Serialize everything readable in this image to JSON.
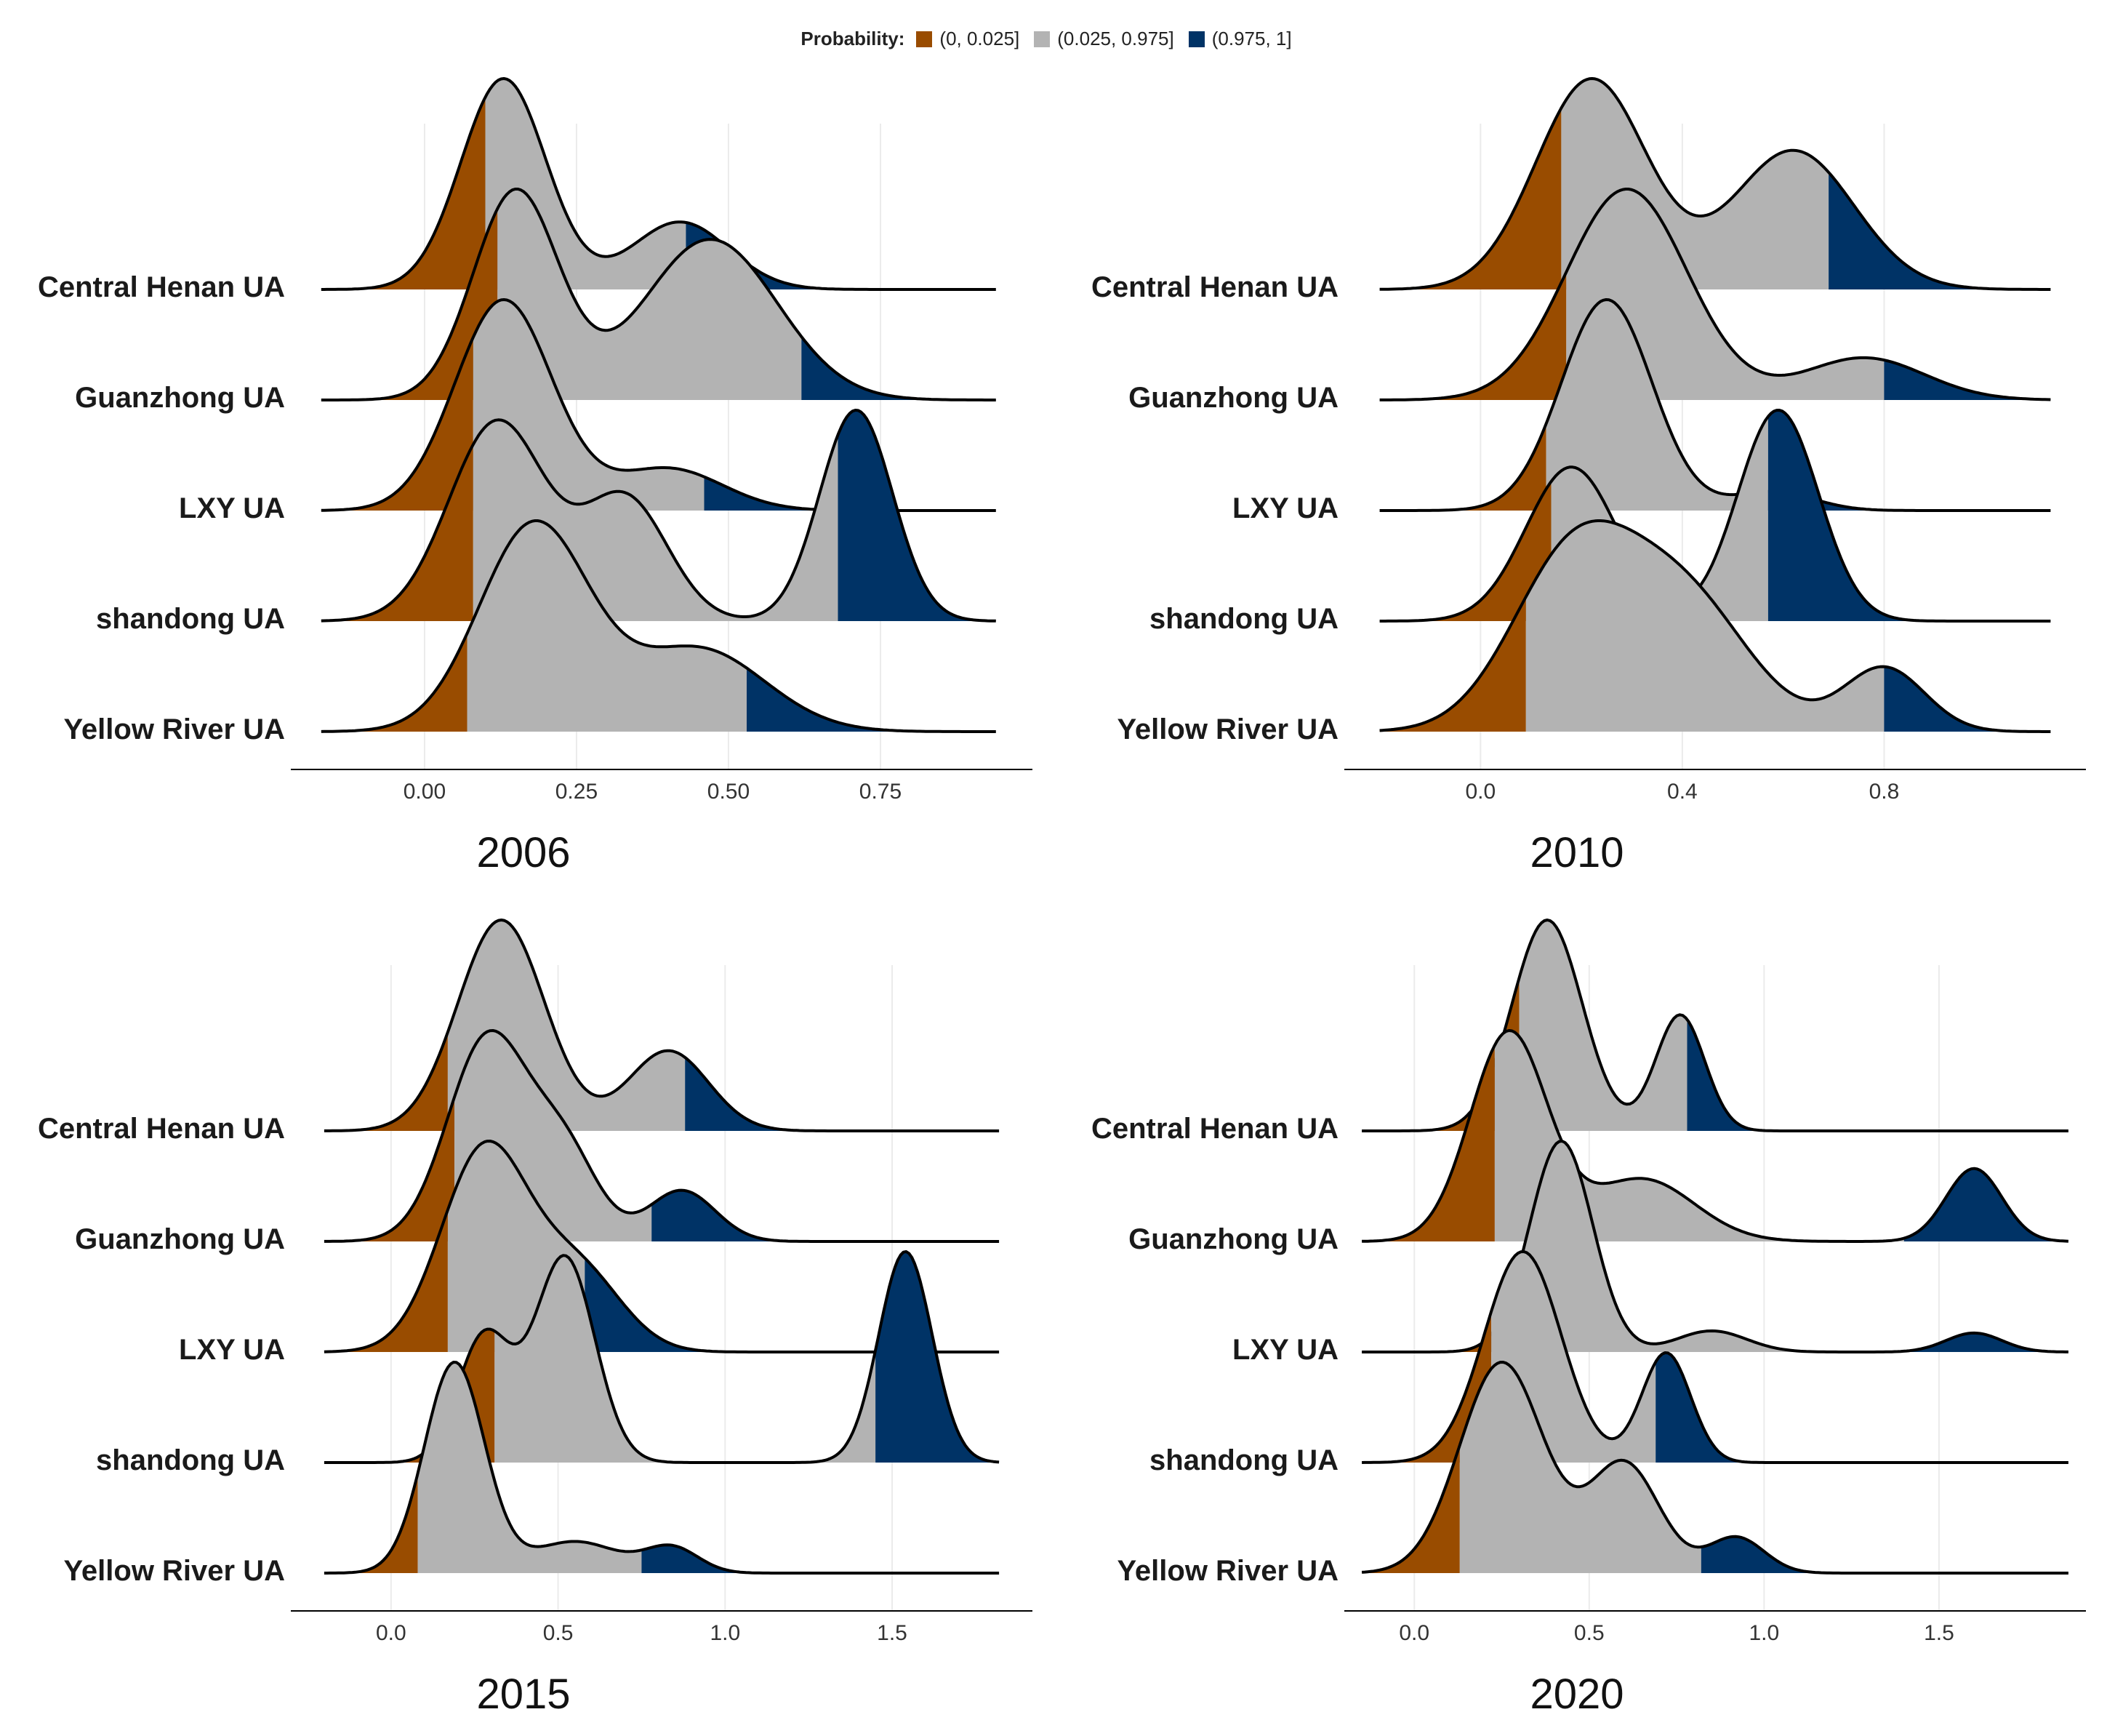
{
  "legend": {
    "title": "Probability:",
    "items": [
      {
        "label": "(0, 0.025]",
        "color": "#994C00"
      },
      {
        "label": "(0.025, 0.975]",
        "color": "#B3B3B3"
      },
      {
        "label": "(0.975, 1]",
        "color": "#003366"
      }
    ]
  },
  "chart_data": [
    {
      "type": "ridgeline",
      "title": "2006",
      "categories": [
        "Central Henan UA",
        "Guanzhong UA",
        "LXY UA",
        "shandong UA",
        "Yellow River UA"
      ],
      "xlim": [
        -0.22,
        1.0
      ],
      "x_ticks": [
        0.0,
        0.25,
        0.5,
        0.75
      ],
      "x_tick_labels": [
        "0.00",
        "0.25",
        "0.50",
        "0.75"
      ],
      "x_range": [
        -0.17,
        0.94
      ],
      "series": [
        {
          "name": "Central Henan UA",
          "q_low": 0.1,
          "q_high": 0.43,
          "components": [
            {
              "mu": 0.13,
              "sd": 0.07,
              "w": 1.0
            },
            {
              "mu": 0.42,
              "sd": 0.08,
              "w": 0.32
            }
          ]
        },
        {
          "name": "Guanzhong UA",
          "q_low": 0.12,
          "q_high": 0.62,
          "components": [
            {
              "mu": 0.15,
              "sd": 0.07,
              "w": 1.0
            },
            {
              "mu": 0.47,
              "sd": 0.11,
              "w": 0.77
            }
          ]
        },
        {
          "name": "LXY UA",
          "q_low": 0.08,
          "q_high": 0.46,
          "components": [
            {
              "mu": 0.13,
              "sd": 0.08,
              "w": 1.0
            },
            {
              "mu": 0.4,
              "sd": 0.09,
              "w": 0.2
            }
          ]
        },
        {
          "name": "shandong UA",
          "q_low": 0.08,
          "q_high": 0.68,
          "components": [
            {
              "mu": 0.12,
              "sd": 0.08,
              "w": 0.9
            },
            {
              "mu": 0.33,
              "sd": 0.07,
              "w": 0.55
            },
            {
              "mu": 0.71,
              "sd": 0.06,
              "w": 0.95
            }
          ]
        },
        {
          "name": "Yellow River UA",
          "q_low": 0.07,
          "q_high": 0.53,
          "components": [
            {
              "mu": 0.18,
              "sd": 0.09,
              "w": 1.0
            },
            {
              "mu": 0.45,
              "sd": 0.11,
              "w": 0.4
            }
          ]
        }
      ]
    },
    {
      "type": "ridgeline",
      "title": "2010",
      "categories": [
        "Central Henan UA",
        "Guanzhong UA",
        "LXY UA",
        "shandong UA",
        "Yellow River UA"
      ],
      "xlim": [
        -0.27,
        1.2
      ],
      "x_ticks": [
        0.0,
        0.4,
        0.8
      ],
      "x_tick_labels": [
        "0.0",
        "0.4",
        "0.8"
      ],
      "x_range": [
        -0.2,
        1.13
      ],
      "series": [
        {
          "name": "Central Henan UA",
          "q_low": 0.16,
          "q_high": 0.69,
          "components": [
            {
              "mu": 0.22,
              "sd": 0.11,
              "w": 1.0
            },
            {
              "mu": 0.62,
              "sd": 0.12,
              "w": 0.66
            }
          ]
        },
        {
          "name": "Guanzhong UA",
          "q_low": 0.17,
          "q_high": 0.8,
          "components": [
            {
              "mu": 0.29,
              "sd": 0.12,
              "w": 1.0
            },
            {
              "mu": 0.76,
              "sd": 0.12,
              "w": 0.2
            }
          ]
        },
        {
          "name": "LXY UA",
          "q_low": 0.13,
          "q_high": 0.56,
          "components": [
            {
              "mu": 0.25,
              "sd": 0.09,
              "w": 1.0
            },
            {
              "mu": 0.58,
              "sd": 0.08,
              "w": 0.09
            }
          ]
        },
        {
          "name": "shandong UA",
          "q_low": 0.14,
          "q_high": 0.57,
          "components": [
            {
              "mu": 0.18,
              "sd": 0.09,
              "w": 0.73
            },
            {
              "mu": 0.59,
              "sd": 0.08,
              "w": 1.0
            }
          ]
        },
        {
          "name": "Yellow River UA",
          "q_low": 0.09,
          "q_high": 0.8,
          "components": [
            {
              "mu": 0.18,
              "sd": 0.12,
              "w": 0.95
            },
            {
              "mu": 0.4,
              "sd": 0.13,
              "w": 0.75
            },
            {
              "mu": 0.8,
              "sd": 0.08,
              "w": 0.36
            }
          ]
        }
      ]
    },
    {
      "type": "ridgeline",
      "title": "2015",
      "categories": [
        "Central Henan UA",
        "Guanzhong UA",
        "LXY UA",
        "shandong UA",
        "Yellow River UA"
      ],
      "xlim": [
        -0.3,
        1.92
      ],
      "x_ticks": [
        0.0,
        0.5,
        1.0,
        1.5
      ],
      "x_tick_labels": [
        "0.0",
        "0.5",
        "1.0",
        "1.5"
      ],
      "x_range": [
        -0.2,
        1.82
      ],
      "series": [
        {
          "name": "Central Henan UA",
          "q_low": 0.17,
          "q_high": 0.88,
          "components": [
            {
              "mu": 0.33,
              "sd": 0.13,
              "w": 1.0
            },
            {
              "mu": 0.83,
              "sd": 0.12,
              "w": 0.38
            }
          ]
        },
        {
          "name": "Guanzhong UA",
          "q_low": 0.19,
          "q_high": 0.78,
          "components": [
            {
              "mu": 0.29,
              "sd": 0.12,
              "w": 1.0
            },
            {
              "mu": 0.52,
              "sd": 0.1,
              "w": 0.42
            },
            {
              "mu": 0.87,
              "sd": 0.1,
              "w": 0.25
            }
          ]
        },
        {
          "name": "LXY UA",
          "q_low": 0.17,
          "q_high": 0.58,
          "components": [
            {
              "mu": 0.28,
              "sd": 0.13,
              "w": 1.0
            },
            {
              "mu": 0.56,
              "sd": 0.13,
              "w": 0.4
            }
          ]
        },
        {
          "name": "shandong UA",
          "q_low": 0.31,
          "q_high": 1.45,
          "components": [
            {
              "mu": 0.28,
              "sd": 0.08,
              "w": 0.48
            },
            {
              "mu": 0.52,
              "sd": 0.09,
              "w": 0.78
            },
            {
              "mu": 1.54,
              "sd": 0.08,
              "w": 0.8
            }
          ]
        },
        {
          "name": "Yellow River UA",
          "q_low": 0.08,
          "q_high": 0.75,
          "components": [
            {
              "mu": 0.19,
              "sd": 0.09,
              "w": 1.0
            },
            {
              "mu": 0.55,
              "sd": 0.13,
              "w": 0.15
            },
            {
              "mu": 0.84,
              "sd": 0.08,
              "w": 0.12
            }
          ]
        }
      ]
    },
    {
      "type": "ridgeline",
      "title": "2020",
      "categories": [
        "Central Henan UA",
        "Guanzhong UA",
        "LXY UA",
        "shandong UA",
        "Yellow River UA"
      ],
      "xlim": [
        -0.2,
        1.92
      ],
      "x_ticks": [
        0.0,
        0.5,
        1.0,
        1.5
      ],
      "x_tick_labels": [
        "0.0",
        "0.5",
        "1.0",
        "1.5"
      ],
      "x_range": [
        -0.15,
        1.87
      ],
      "series": [
        {
          "name": "Central Henan UA",
          "q_low": 0.3,
          "q_high": 0.78,
          "components": [
            {
              "mu": 0.38,
              "sd": 0.1,
              "w": 1.0
            },
            {
              "mu": 0.76,
              "sd": 0.07,
              "w": 0.55
            }
          ]
        },
        {
          "name": "Guanzhong UA",
          "q_low": 0.23,
          "q_high": 1.4,
          "components": [
            {
              "mu": 0.27,
              "sd": 0.11,
              "w": 1.0
            },
            {
              "mu": 0.65,
              "sd": 0.15,
              "w": 0.3
            },
            {
              "mu": 1.6,
              "sd": 0.08,
              "w": 0.35
            }
          ]
        },
        {
          "name": "LXY UA",
          "q_low": 0.23,
          "q_high": 1.4,
          "components": [
            {
              "mu": 0.42,
              "sd": 0.09,
              "w": 1.0
            },
            {
              "mu": 0.85,
              "sd": 0.1,
              "w": 0.1
            },
            {
              "mu": 1.6,
              "sd": 0.08,
              "w": 0.09
            }
          ]
        },
        {
          "name": "shandong UA",
          "q_low": 0.22,
          "q_high": 0.69,
          "components": [
            {
              "mu": 0.31,
              "sd": 0.11,
              "w": 1.0
            },
            {
              "mu": 0.72,
              "sd": 0.07,
              "w": 0.52
            }
          ]
        },
        {
          "name": "Yellow River UA",
          "q_low": 0.13,
          "q_high": 0.82,
          "components": [
            {
              "mu": 0.25,
              "sd": 0.12,
              "w": 1.0
            },
            {
              "mu": 0.6,
              "sd": 0.1,
              "w": 0.52
            },
            {
              "mu": 0.92,
              "sd": 0.08,
              "w": 0.17
            }
          ]
        }
      ]
    }
  ]
}
